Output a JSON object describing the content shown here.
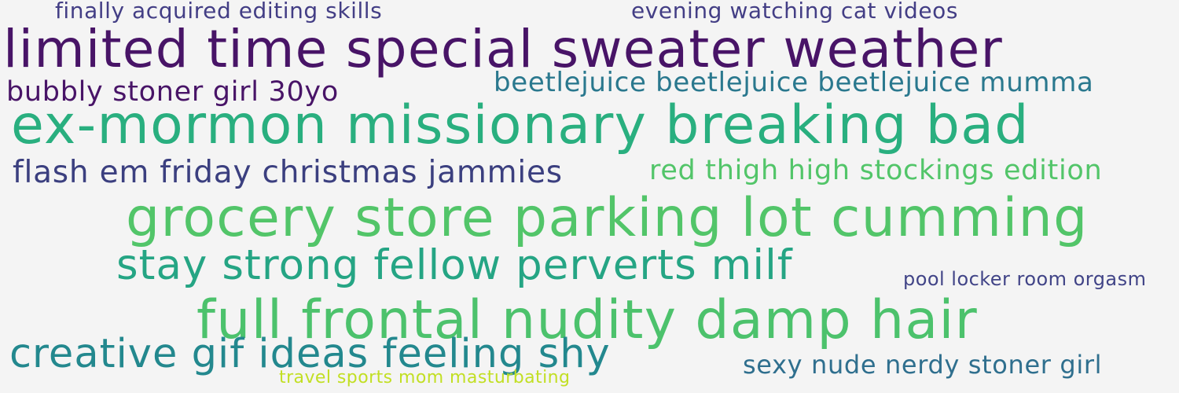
{
  "word_cloud": {
    "background": "#f4f4f4",
    "phrases": [
      {
        "text": "finally acquired editing skills",
        "color": "#433e85"
      },
      {
        "text": "evening watching cat videos",
        "color": "#433e85"
      },
      {
        "text": "limited time special sweater weather",
        "color": "#481467"
      },
      {
        "text": "bubbly stoner girl 30yo",
        "color": "#481467"
      },
      {
        "text": "beetlejuice beetlejuice beetlejuice mumma",
        "color": "#2a788e"
      },
      {
        "text": "ex-mormon missionary breaking bad",
        "color": "#29af7f"
      },
      {
        "text": "flash em friday christmas jammies",
        "color": "#3b3f7f"
      },
      {
        "text": "red thigh high stockings edition",
        "color": "#52c569"
      },
      {
        "text": "grocery store parking lot cumming",
        "color": "#52c569"
      },
      {
        "text": "stay strong fellow perverts milf",
        "color": "#25a584"
      },
      {
        "text": "pool locker room orgasm",
        "color": "#414487"
      },
      {
        "text": "full frontal nudity damp hair",
        "color": "#4cc26c"
      },
      {
        "text": "creative gif ideas feeling shy",
        "color": "#23888e"
      },
      {
        "text": "sexy nude nerdy stoner girl",
        "color": "#2f6f8e"
      },
      {
        "text": "travel sports mom masturbating",
        "color": "#c2df23"
      }
    ]
  }
}
